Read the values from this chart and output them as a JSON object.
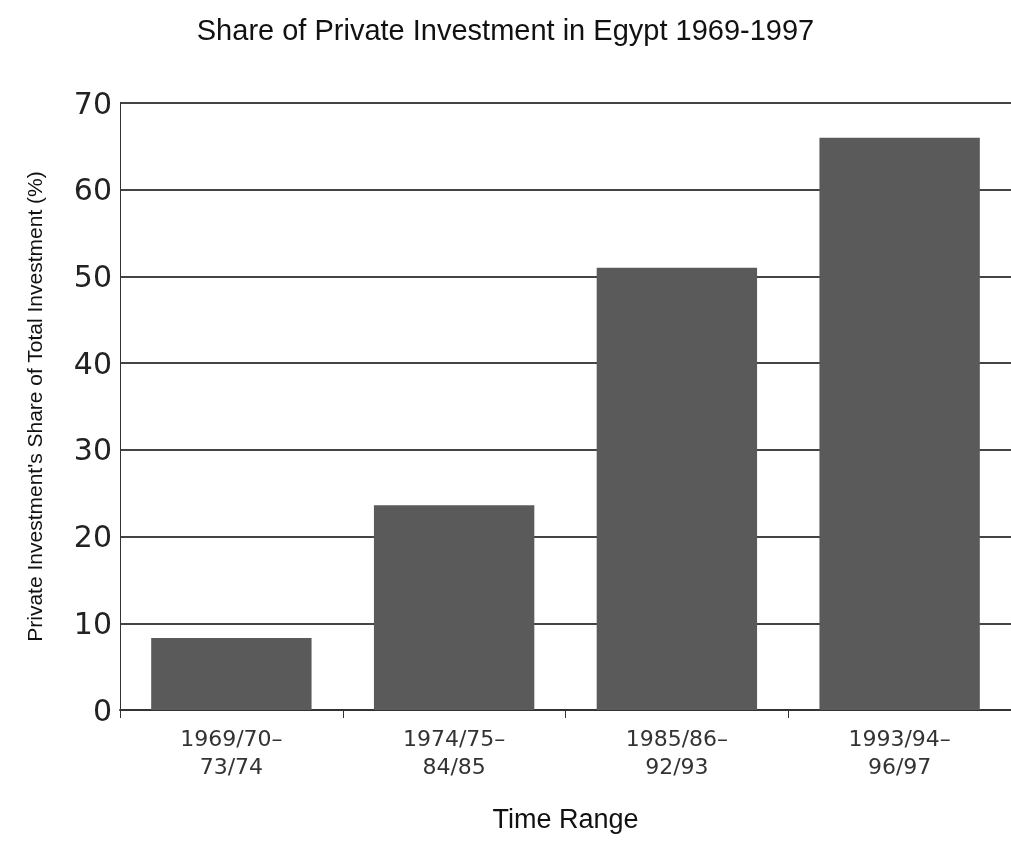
{
  "chart_data": {
    "type": "bar",
    "title": "Share of Private Investment in Egypt 1969-1997",
    "xlabel": "Time Range",
    "ylabel": "Private Investment's Share of Total Investment (%)",
    "categories": [
      "1969/70–\n73/74",
      "1974/75–\n84/85",
      "1985/86–\n92/93",
      "1993/94–\n96/97"
    ],
    "values": [
      8.3,
      23.6,
      51,
      66
    ],
    "color": "#5a5a5a",
    "ylim": [
      0,
      70
    ],
    "yticks": [
      0,
      10,
      20,
      30,
      40,
      50,
      60,
      70
    ],
    "grid": "y"
  }
}
